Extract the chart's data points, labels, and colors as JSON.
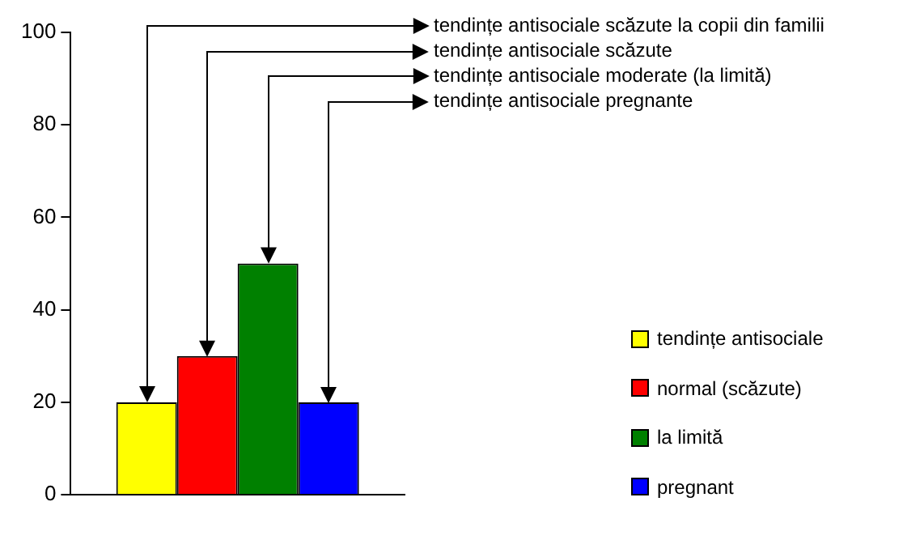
{
  "chart_data": {
    "type": "bar",
    "categories": [
      null
    ],
    "series": [
      {
        "name": "tendințe antisociale",
        "color": "#ffff00",
        "values": [
          20
        ]
      },
      {
        "name": "normal (scăzute)",
        "color": "#ff0000",
        "values": [
          30
        ]
      },
      {
        "name": "la limită",
        "color": "#008000",
        "values": [
          50
        ]
      },
      {
        "name": "pregnant",
        "color": "#0000ff",
        "values": [
          20
        ]
      }
    ],
    "ylim": [
      0,
      100
    ],
    "yticks": [
      0,
      20,
      40,
      60,
      80,
      100
    ],
    "legend": "right",
    "annotations": [
      "tendințe antisociale scăzute la copii din familii",
      "tendințe antisociale scăzute",
      "tendințe antisociale moderate (la limită)",
      "tendințe antisociale pregnante"
    ]
  }
}
